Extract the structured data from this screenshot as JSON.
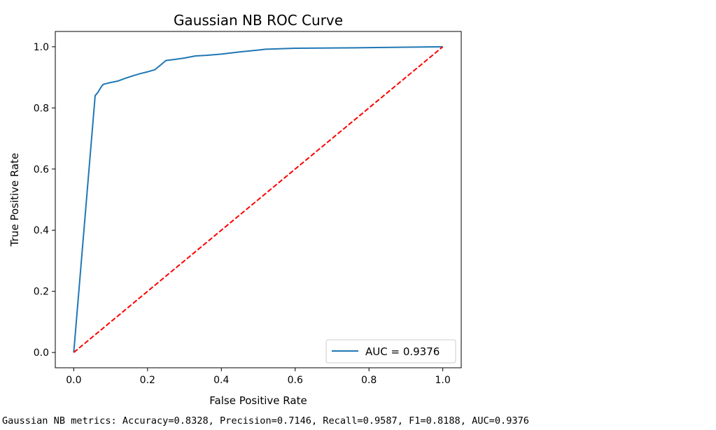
{
  "chart_data": {
    "type": "line",
    "title": "Gaussian NB ROC Curve",
    "xlabel": "False Positive Rate",
    "ylabel": "True Positive Rate",
    "xlim": [
      -0.05,
      1.05
    ],
    "ylim": [
      -0.05,
      1.05
    ],
    "xticks": [
      {
        "value": 0.0,
        "label": "0.0"
      },
      {
        "value": 0.2,
        "label": "0.2"
      },
      {
        "value": 0.4,
        "label": "0.4"
      },
      {
        "value": 0.6,
        "label": "0.6"
      },
      {
        "value": 0.8,
        "label": "0.8"
      },
      {
        "value": 1.0,
        "label": "1.0"
      }
    ],
    "yticks": [
      {
        "value": 0.0,
        "label": "0.0"
      },
      {
        "value": 0.2,
        "label": "0.2"
      },
      {
        "value": 0.4,
        "label": "0.4"
      },
      {
        "value": 0.6,
        "label": "0.6"
      },
      {
        "value": 0.8,
        "label": "0.8"
      },
      {
        "value": 1.0,
        "label": "1.0"
      }
    ],
    "grid": false,
    "legend_position": "lower-right",
    "series": [
      {
        "name": "AUC = 0.9376",
        "color": "#1f77b4",
        "style": "solid",
        "points": [
          [
            0.0,
            0.0
          ],
          [
            0.058,
            0.84
          ],
          [
            0.065,
            0.85
          ],
          [
            0.07,
            0.86
          ],
          [
            0.075,
            0.87
          ],
          [
            0.08,
            0.877
          ],
          [
            0.09,
            0.88
          ],
          [
            0.1,
            0.883
          ],
          [
            0.12,
            0.888
          ],
          [
            0.14,
            0.897
          ],
          [
            0.16,
            0.905
          ],
          [
            0.18,
            0.912
          ],
          [
            0.2,
            0.918
          ],
          [
            0.22,
            0.925
          ],
          [
            0.235,
            0.94
          ],
          [
            0.25,
            0.955
          ],
          [
            0.27,
            0.958
          ],
          [
            0.3,
            0.963
          ],
          [
            0.33,
            0.97
          ],
          [
            0.36,
            0.972
          ],
          [
            0.4,
            0.976
          ],
          [
            0.45,
            0.983
          ],
          [
            0.5,
            0.989
          ],
          [
            0.52,
            0.992
          ],
          [
            0.6,
            0.995
          ],
          [
            0.8,
            0.997
          ],
          [
            1.0,
            1.0
          ]
        ]
      },
      {
        "color": "#ff0000",
        "style": "dashed",
        "points": [
          [
            0.0,
            0.0
          ],
          [
            1.0,
            1.0
          ]
        ]
      }
    ]
  },
  "metrics_text": "Gaussian NB metrics: Accuracy=0.8328, Precision=0.7146, Recall=0.9587, F1=0.8188, AUC=0.9376"
}
